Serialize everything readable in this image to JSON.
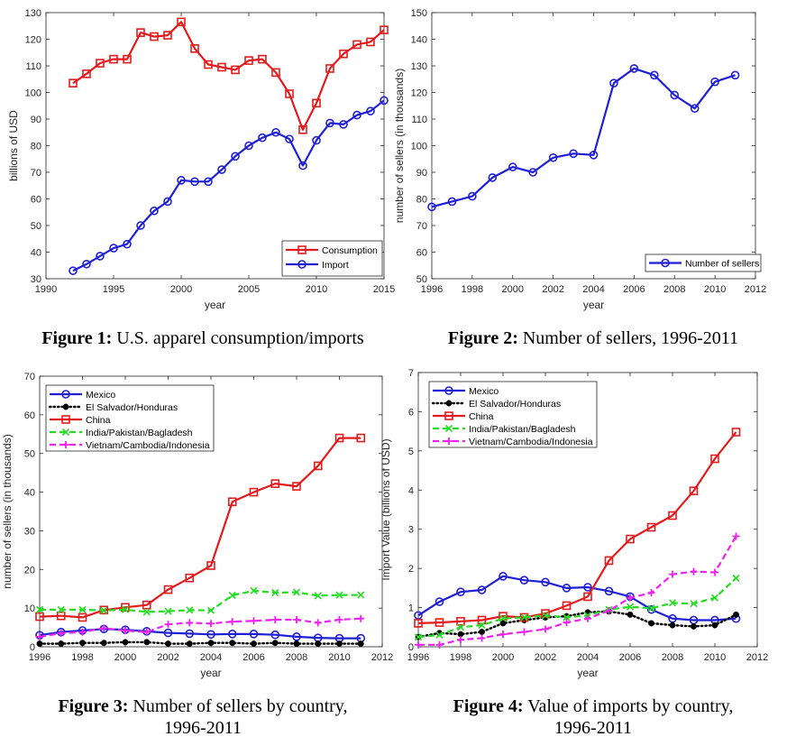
{
  "captions": [
    {
      "label": "Figure 1:",
      "text": "U.S. apparel consumption/imports"
    },
    {
      "label": "Figure 2:",
      "text": "Number of sellers, 1996-2011"
    },
    {
      "label": "Figure 3:",
      "text": "Number of sellers by country,",
      "text2": "1996-2011"
    },
    {
      "label": "Figure 4:",
      "text": "Value of imports by country,",
      "text2": "1996-2011"
    }
  ],
  "chart_data": [
    {
      "type": "line",
      "xlabel": "year",
      "ylabel": "billions of USD",
      "xlim": [
        1990,
        2015
      ],
      "ylim": [
        30,
        130
      ],
      "xticks": [
        1990,
        1995,
        2000,
        2005,
        2010,
        2015
      ],
      "yticks": [
        30,
        40,
        50,
        60,
        70,
        80,
        90,
        100,
        110,
        120,
        130
      ],
      "grid": false,
      "legend": "bottom-right",
      "series": [
        {
          "name": "Consumption",
          "color": "#e41a1c",
          "marker": "square",
          "dash": "solid",
          "x": [
            1992,
            1993,
            1994,
            1995,
            1996,
            1997,
            1998,
            1999,
            2000,
            2001,
            2002,
            2003,
            2004,
            2005,
            2006,
            2007,
            2008,
            2009,
            2010,
            2011,
            2012,
            2013,
            2014,
            2015
          ],
          "values": [
            103.5,
            107,
            111,
            112.5,
            112.5,
            122.5,
            121,
            121.5,
            126.5,
            116.5,
            110.5,
            109.5,
            108.5,
            112,
            112.5,
            107.5,
            99.5,
            86,
            96,
            109,
            114.5,
            118,
            119,
            123.5
          ]
        },
        {
          "name": "Import",
          "color": "#1f1fd6",
          "marker": "circle",
          "dash": "solid",
          "x": [
            1992,
            1993,
            1994,
            1995,
            1996,
            1997,
            1998,
            1999,
            2000,
            2001,
            2002,
            2003,
            2004,
            2005,
            2006,
            2007,
            2008,
            2009,
            2010,
            2011,
            2012,
            2013,
            2014,
            2015
          ],
          "values": [
            33,
            35.5,
            38.5,
            41.5,
            43,
            50,
            55.5,
            59,
            67,
            66.5,
            66.5,
            71,
            76,
            80,
            83,
            85,
            82.5,
            72.5,
            82,
            88.5,
            88,
            91.5,
            93,
            97
          ]
        }
      ]
    },
    {
      "type": "line",
      "xlabel": "year",
      "ylabel": "number of sellers (in thousands)",
      "xlim": [
        1996,
        2012
      ],
      "ylim": [
        50,
        150
      ],
      "xticks": [
        1996,
        1998,
        2000,
        2002,
        2004,
        2006,
        2008,
        2010,
        2012
      ],
      "yticks": [
        50,
        60,
        70,
        80,
        90,
        100,
        110,
        120,
        130,
        140,
        150
      ],
      "grid": false,
      "legend": "bottom-right",
      "series": [
        {
          "name": "Number of sellers",
          "color": "#1f1fd6",
          "marker": "circle",
          "dash": "solid",
          "x": [
            1996,
            1997,
            1998,
            1999,
            2000,
            2001,
            2002,
            2003,
            2004,
            2005,
            2006,
            2007,
            2008,
            2009,
            2010,
            2011
          ],
          "values": [
            77,
            79,
            81,
            88,
            92,
            90,
            95.5,
            97,
            96.5,
            123.5,
            129,
            126.5,
            119,
            114,
            124,
            126.5
          ]
        }
      ]
    },
    {
      "type": "line",
      "xlabel": "year",
      "ylabel": "number of sellers (in thousands)",
      "xlim": [
        1996,
        2012
      ],
      "ylim": [
        0,
        70
      ],
      "xticks": [
        1996,
        1998,
        2000,
        2002,
        2004,
        2006,
        2008,
        2010,
        2012
      ],
      "yticks": [
        0,
        10,
        20,
        30,
        40,
        50,
        60,
        70
      ],
      "grid": false,
      "legend": "top-left",
      "series": [
        {
          "name": "Mexico",
          "color": "#1f1fd6",
          "marker": "circle",
          "dash": "solid",
          "x": [
            1996,
            1997,
            1998,
            1999,
            2000,
            2001,
            2002,
            2003,
            2004,
            2005,
            2006,
            2007,
            2008,
            2009,
            2010,
            2011
          ],
          "values": [
            3,
            3.8,
            4.2,
            4.6,
            4.4,
            4,
            3.6,
            3.4,
            3.2,
            3.3,
            3.3,
            3.1,
            2.6,
            2.3,
            2.2,
            2.2
          ]
        },
        {
          "name": "El Salvador/Honduras",
          "color": "#000000",
          "marker": "dot",
          "dash": "dotted",
          "x": [
            1996,
            1997,
            1998,
            1999,
            2000,
            2001,
            2002,
            2003,
            2004,
            2005,
            2006,
            2007,
            2008,
            2009,
            2010,
            2011
          ],
          "values": [
            0.8,
            0.8,
            1,
            1,
            1.2,
            1.2,
            0.8,
            0.8,
            1,
            1,
            0.8,
            1,
            0.8,
            0.8,
            0.8,
            0.8
          ]
        },
        {
          "name": "China",
          "color": "#e41a1c",
          "marker": "square",
          "dash": "solid",
          "x": [
            1996,
            1997,
            1998,
            1999,
            2000,
            2001,
            2002,
            2003,
            2004,
            2005,
            2006,
            2007,
            2008,
            2009,
            2010,
            2011
          ],
          "values": [
            7.8,
            8,
            7.6,
            9.5,
            10.2,
            10.8,
            14.8,
            17.8,
            21,
            37.5,
            40,
            42.2,
            41.5,
            46.8,
            54,
            54
          ]
        },
        {
          "name": "India/Pakistan/Bagladesh",
          "color": "#22dd22",
          "marker": "x",
          "dash": "dashed",
          "x": [
            1996,
            1997,
            1998,
            1999,
            2000,
            2001,
            2002,
            2003,
            2004,
            2005,
            2006,
            2007,
            2008,
            2009,
            2010,
            2011
          ],
          "values": [
            9.6,
            9.6,
            9.6,
            9.4,
            9.6,
            9,
            9.2,
            9.5,
            9.4,
            13.3,
            14.5,
            14,
            14.1,
            13.2,
            13.4,
            13.4
          ]
        },
        {
          "name": "Vietnam/Cambodia/Indonesia",
          "color": "#ee22ee",
          "marker": "plus",
          "dash": "dashed",
          "x": [
            1996,
            1997,
            1998,
            1999,
            2000,
            2001,
            2002,
            2003,
            2004,
            2005,
            2006,
            2007,
            2008,
            2009,
            2010,
            2011
          ],
          "values": [
            2.6,
            3.5,
            3.8,
            4.8,
            4.2,
            3.8,
            5.8,
            6.2,
            6,
            6.5,
            6.7,
            7,
            7,
            6.2,
            7,
            7.3
          ]
        }
      ]
    },
    {
      "type": "line",
      "xlabel": "year",
      "ylabel": "Import Value (billions of USD)",
      "xlim": [
        1996,
        2012
      ],
      "ylim": [
        0,
        7
      ],
      "xticks": [
        1996,
        1998,
        2000,
        2002,
        2004,
        2006,
        2008,
        2010,
        2012
      ],
      "yticks": [
        0,
        1,
        2,
        3,
        4,
        5,
        6,
        7
      ],
      "grid": false,
      "legend": "top-left",
      "series": [
        {
          "name": "Mexico",
          "color": "#1f1fd6",
          "marker": "circle",
          "dash": "solid",
          "x": [
            1996,
            1997,
            1998,
            1999,
            2000,
            2001,
            2002,
            2003,
            2004,
            2005,
            2006,
            2007,
            2008,
            2009,
            2010,
            2011
          ],
          "values": [
            0.8,
            1.15,
            1.4,
            1.45,
            1.8,
            1.7,
            1.65,
            1.5,
            1.52,
            1.42,
            1.28,
            0.95,
            0.72,
            0.68,
            0.68,
            0.72
          ]
        },
        {
          "name": "El Salvador/Honduras",
          "color": "#000000",
          "marker": "dot",
          "dash": "dotted",
          "x": [
            1996,
            1997,
            1998,
            1999,
            2000,
            2001,
            2002,
            2003,
            2004,
            2005,
            2006,
            2007,
            2008,
            2009,
            2010,
            2011
          ],
          "values": [
            0.25,
            0.35,
            0.32,
            0.38,
            0.6,
            0.68,
            0.75,
            0.78,
            0.88,
            0.9,
            0.82,
            0.6,
            0.55,
            0.52,
            0.55,
            0.82
          ]
        },
        {
          "name": "China",
          "color": "#e41a1c",
          "marker": "square",
          "dash": "solid",
          "x": [
            1996,
            1997,
            1998,
            1999,
            2000,
            2001,
            2002,
            2003,
            2004,
            2005,
            2006,
            2007,
            2008,
            2009,
            2010,
            2011
          ],
          "values": [
            0.6,
            0.62,
            0.65,
            0.68,
            0.78,
            0.75,
            0.85,
            1.05,
            1.28,
            2.2,
            2.75,
            3.05,
            3.35,
            3.98,
            4.8,
            5.48
          ]
        },
        {
          "name": "India/Pakistan/Bagladesh",
          "color": "#22dd22",
          "marker": "x",
          "dash": "dashed",
          "x": [
            1996,
            1997,
            1998,
            1999,
            2000,
            2001,
            2002,
            2003,
            2004,
            2005,
            2006,
            2007,
            2008,
            2009,
            2010,
            2011
          ],
          "values": [
            0.25,
            0.3,
            0.5,
            0.55,
            0.72,
            0.75,
            0.8,
            0.75,
            0.8,
            0.95,
            1.02,
            0.98,
            1.12,
            1.1,
            1.25,
            1.75
          ]
        },
        {
          "name": "Vietnam/Cambodia/Indonesia",
          "color": "#ee22ee",
          "marker": "plus",
          "dash": "dashed",
          "x": [
            1996,
            1997,
            1998,
            1999,
            2000,
            2001,
            2002,
            2003,
            2004,
            2005,
            2006,
            2007,
            2008,
            2009,
            2010,
            2011
          ],
          "values": [
            0.05,
            0.05,
            0.18,
            0.22,
            0.32,
            0.38,
            0.45,
            0.62,
            0.72,
            0.92,
            1.25,
            1.38,
            1.85,
            1.92,
            1.9,
            2.82
          ]
        }
      ]
    }
  ]
}
